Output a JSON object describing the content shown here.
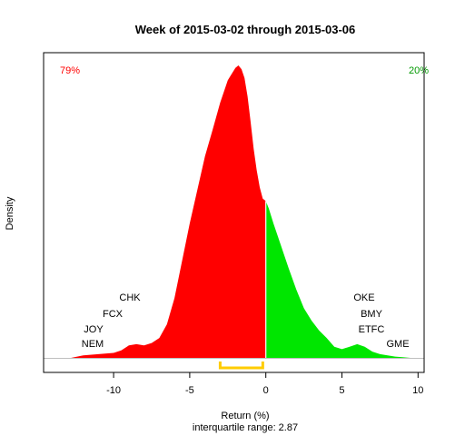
{
  "chart_data": {
    "type": "area",
    "title": "Week of 2015-03-02 through 2015-03-06",
    "xlabel": "Return (%)",
    "ylabel": "Density",
    "subtitle": "interquartile range: 2.87",
    "xlim": [
      -14.6,
      10.4
    ],
    "xticks": [
      -10,
      -5,
      0,
      5,
      10
    ],
    "xtick_labels": [
      "-10",
      "-5",
      "0",
      "5",
      "10"
    ],
    "yaxis_shown": false,
    "grid": false,
    "pct_negative": "79%",
    "pct_positive": "20%",
    "colors": {
      "negative": "#ff0000",
      "positive": "#00e600",
      "iqr_bar": "#ffcc00",
      "divider": "#ffffff",
      "baseline": "#bebebe"
    },
    "iqr": {
      "low": -3.0,
      "high": -0.2
    },
    "density_peak": 0.235,
    "density": {
      "x": [
        -12.8,
        -12.0,
        -11.0,
        -10.0,
        -9.5,
        -9.0,
        -8.5,
        -8.0,
        -7.5,
        -7.0,
        -6.5,
        -6.0,
        -5.5,
        -5.0,
        -4.5,
        -4.0,
        -3.5,
        -3.0,
        -2.5,
        -2.0,
        -1.8,
        -1.6,
        -1.4,
        -1.2,
        -1.0,
        -0.8,
        -0.6,
        -0.4,
        -0.2,
        0.0,
        0.2,
        0.5,
        1.0,
        1.5,
        2.0,
        2.5,
        3.0,
        3.5,
        4.0,
        4.5,
        5.0,
        5.5,
        6.0,
        6.5,
        7.0,
        7.5,
        8.0,
        8.5,
        9.0,
        9.5
      ],
      "y": [
        0.0,
        0.002,
        0.003,
        0.004,
        0.006,
        0.01,
        0.011,
        0.01,
        0.012,
        0.016,
        0.027,
        0.048,
        0.078,
        0.108,
        0.135,
        0.162,
        0.183,
        0.205,
        0.223,
        0.233,
        0.235,
        0.232,
        0.225,
        0.21,
        0.19,
        0.168,
        0.151,
        0.137,
        0.128,
        0.126,
        0.12,
        0.108,
        0.09,
        0.072,
        0.055,
        0.04,
        0.03,
        0.022,
        0.016,
        0.009,
        0.007,
        0.009,
        0.011,
        0.009,
        0.005,
        0.003,
        0.002,
        0.001,
        0.0005,
        0.0
      ]
    },
    "annotations": {
      "negative": [
        "CHK",
        "FCX",
        "JOY",
        "NEM"
      ],
      "positive": [
        "OKE",
        "BMY",
        "ETFC",
        "GME"
      ]
    }
  }
}
